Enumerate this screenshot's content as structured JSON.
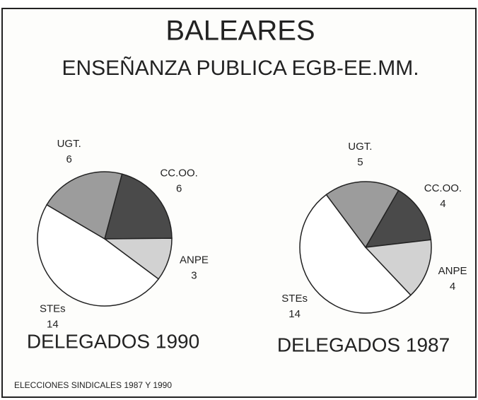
{
  "title": "BALEARES",
  "subtitle": "ENSEÑANZA PUBLICA EGB-EE.MM.",
  "footer": "ELECCIONES SINDICALES 1987 Y 1990",
  "chart_data": [
    {
      "type": "pie",
      "title": "DELEGADOS 1990",
      "categories": [
        "CC.OO.",
        "ANPE",
        "STEs",
        "UGT."
      ],
      "values": [
        6,
        3,
        14,
        6
      ],
      "colors": [
        "#4a4a4a",
        "#d2d2d2",
        "#ffffff",
        "#9c9c9c"
      ]
    },
    {
      "type": "pie",
      "title": "DELEGADOS 1987",
      "categories": [
        "CC.OO.",
        "ANPE",
        "STEs",
        "UGT."
      ],
      "values": [
        4,
        4,
        14,
        5
      ],
      "colors": [
        "#4a4a4a",
        "#d2d2d2",
        "#ffffff",
        "#9c9c9c"
      ]
    }
  ]
}
